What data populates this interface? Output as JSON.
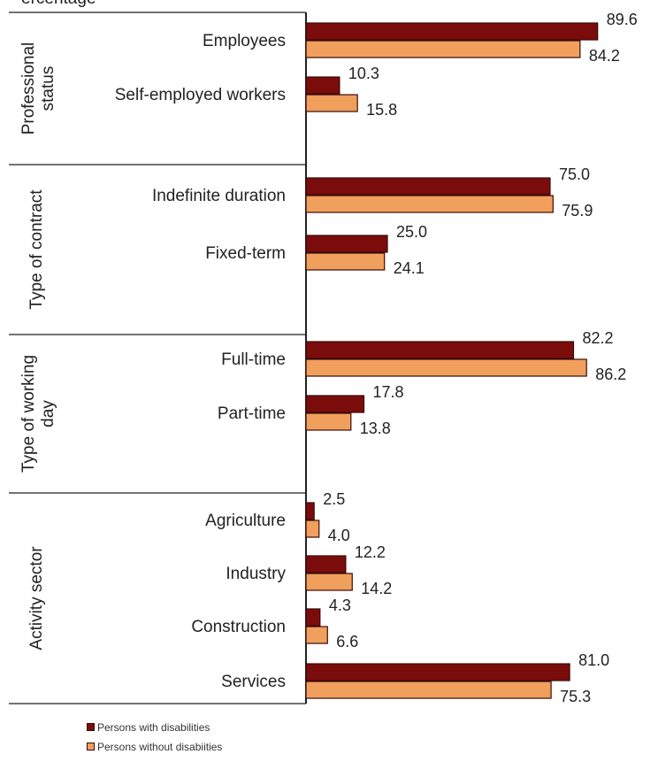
{
  "chart_data": {
    "type": "bar",
    "orientation": "horizontal",
    "title_fragment": "ercentage",
    "groups": [
      {
        "label": [
          "Professional",
          "status"
        ],
        "categories": [
          "Employees",
          "Self-employed workers"
        ]
      },
      {
        "label": [
          "Type of contract"
        ],
        "categories": [
          "Indefinite duration",
          "Fixed-term"
        ]
      },
      {
        "label": [
          "Type of working",
          "day"
        ],
        "categories": [
          "Full-time",
          "Part-time"
        ]
      },
      {
        "label": [
          "Activity sector"
        ],
        "categories": [
          "Agriculture",
          "Industry",
          "Construction",
          "Services"
        ]
      }
    ],
    "categories": [
      "Employees",
      "Self-employed workers",
      "Indefinite duration",
      "Fixed-term",
      "Full-time",
      "Part-time",
      "Agriculture",
      "Industry",
      "Construction",
      "Services"
    ],
    "series": [
      {
        "name": "Persons with disabilities",
        "color": "#7b0c0c",
        "values": [
          89.6,
          10.3,
          75.0,
          25.0,
          82.2,
          17.8,
          2.5,
          12.2,
          4.3,
          81.0
        ],
        "labels": [
          "89.6",
          "10.3",
          "75.0",
          "25.0",
          "82.2",
          "17.8",
          "2.5",
          "12.2",
          "4.3",
          "81.0"
        ]
      },
      {
        "name": "Persons without disabiities",
        "color": "#f0a05c",
        "values": [
          84.2,
          15.8,
          75.9,
          24.1,
          86.2,
          13.8,
          4.0,
          14.2,
          6.6,
          75.3
        ],
        "labels": [
          "84.2",
          "15.8",
          "75.9",
          "24.1",
          "86.2",
          "13.8",
          "4.0",
          "14.2",
          "6.6",
          "75.3"
        ]
      }
    ],
    "xlim": [
      0,
      100
    ],
    "grid": false,
    "legend_position": "bottom-left"
  }
}
